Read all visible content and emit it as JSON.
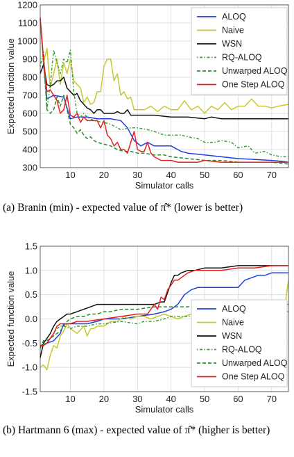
{
  "chart_data": [
    {
      "type": "line",
      "xlabel": "Simulator calls",
      "ylabel": "Expected function value",
      "xlim": [
        1,
        75
      ],
      "ylim": [
        300,
        1200
      ],
      "xticks": [
        10,
        20,
        30,
        40,
        50,
        60,
        70
      ],
      "yticks": [
        300,
        400,
        500,
        600,
        700,
        800,
        900,
        1000,
        1100,
        1200
      ],
      "grid": true,
      "legend_position": "top-right",
      "series": [
        {
          "name": "ALOQ",
          "color": "#1f3fe0",
          "style": "solid",
          "x": [
            1,
            2,
            3,
            5,
            8,
            10,
            12,
            15,
            18,
            20,
            22,
            25,
            27,
            29,
            31,
            33,
            35,
            38,
            40,
            43,
            45,
            50,
            55,
            60,
            65,
            70,
            73,
            75
          ],
          "y": [
            1120,
            870,
            680,
            700,
            690,
            570,
            580,
            580,
            570,
            570,
            570,
            560,
            520,
            450,
            420,
            440,
            420,
            420,
            420,
            390,
            380,
            370,
            360,
            350,
            345,
            340,
            335,
            330
          ]
        },
        {
          "name": "Naive",
          "color": "#c8c830",
          "style": "solid",
          "x": [
            1,
            2,
            3,
            4,
            5,
            6,
            7,
            8,
            9,
            10,
            11,
            12,
            13,
            14,
            15,
            16,
            17,
            18,
            19,
            20,
            21,
            22,
            23,
            24,
            25,
            26,
            27,
            28,
            29,
            30,
            32,
            34,
            36,
            38,
            40,
            42,
            44,
            46,
            48,
            50,
            52,
            54,
            56,
            58,
            60,
            62,
            64,
            66,
            68,
            70,
            72,
            75
          ],
          "y": [
            1120,
            880,
            960,
            740,
            820,
            900,
            760,
            880,
            820,
            900,
            780,
            760,
            740,
            660,
            690,
            650,
            660,
            720,
            720,
            860,
            900,
            900,
            780,
            820,
            700,
            720,
            680,
            690,
            620,
            620,
            620,
            640,
            610,
            640,
            620,
            620,
            670,
            620,
            640,
            600,
            640,
            620,
            660,
            620,
            640,
            640,
            680,
            640,
            640,
            630,
            640,
            650
          ]
        },
        {
          "name": "WSN",
          "color": "#111111",
          "style": "solid",
          "x": [
            1,
            2,
            3,
            4,
            5,
            6,
            7,
            8,
            9,
            10,
            11,
            12,
            13,
            14,
            15,
            16,
            17,
            18,
            19,
            20,
            21,
            22,
            23,
            24,
            25,
            26,
            27,
            28,
            30,
            35,
            40,
            45,
            50,
            52,
            55,
            60,
            65,
            70,
            75
          ],
          "y": [
            820,
            870,
            760,
            750,
            760,
            780,
            780,
            800,
            740,
            720,
            700,
            710,
            670,
            650,
            630,
            620,
            600,
            620,
            620,
            600,
            600,
            600,
            600,
            610,
            600,
            600,
            620,
            590,
            590,
            590,
            580,
            580,
            570,
            580,
            570,
            570,
            570,
            570,
            570
          ]
        },
        {
          "name": "RQ-ALOQ",
          "color": "#3a9e3a",
          "style": "dashdot",
          "x": [
            1,
            2,
            3,
            4,
            5,
            6,
            7,
            8,
            9,
            10,
            11,
            12,
            13,
            14,
            15,
            17,
            20,
            22,
            25,
            28,
            30,
            33,
            35,
            38,
            40,
            43,
            45,
            48,
            50,
            53,
            55,
            58,
            60,
            63,
            65,
            68,
            70,
            73,
            75
          ],
          "y": [
            860,
            940,
            620,
            760,
            950,
            880,
            820,
            900,
            880,
            950,
            720,
            600,
            580,
            600,
            580,
            560,
            550,
            540,
            510,
            520,
            520,
            510,
            500,
            480,
            480,
            480,
            470,
            460,
            440,
            440,
            450,
            440,
            410,
            420,
            380,
            390,
            370,
            360,
            360
          ]
        },
        {
          "name": "Unwarped ALOQ",
          "color": "#2a8a2a",
          "style": "dashed",
          "x": [
            1,
            2,
            3,
            4,
            5,
            6,
            7,
            8,
            9,
            10,
            11,
            12,
            13,
            14,
            15,
            16,
            17,
            18,
            20,
            22,
            24,
            26,
            28,
            30,
            32,
            35,
            38,
            40,
            45,
            50,
            55,
            60,
            65,
            70,
            75
          ],
          "y": [
            1120,
            900,
            620,
            600,
            620,
            690,
            640,
            700,
            620,
            540,
            520,
            490,
            510,
            480,
            460,
            470,
            450,
            440,
            430,
            420,
            400,
            390,
            390,
            380,
            380,
            370,
            370,
            360,
            350,
            340,
            340,
            330,
            330,
            330,
            320
          ]
        },
        {
          "name": "One Step ALOQ",
          "color": "#e52020",
          "style": "solid",
          "x": [
            1,
            2,
            3,
            4,
            5,
            6,
            7,
            8,
            9,
            10,
            11,
            12,
            13,
            14,
            15,
            16,
            17,
            18,
            19,
            20,
            21,
            22,
            23,
            24,
            25,
            26,
            27,
            28,
            29,
            30,
            31,
            32,
            33,
            34,
            35,
            36,
            37,
            38,
            40,
            42,
            45,
            48,
            50,
            55,
            60,
            65,
            70,
            75
          ],
          "y": [
            1130,
            900,
            720,
            730,
            700,
            670,
            600,
            620,
            700,
            590,
            580,
            600,
            550,
            580,
            560,
            560,
            560,
            560,
            520,
            560,
            480,
            460,
            420,
            440,
            400,
            400,
            380,
            440,
            500,
            400,
            390,
            390,
            440,
            380,
            360,
            350,
            340,
            340,
            340,
            330,
            330,
            330,
            340,
            330,
            330,
            330,
            330,
            330
          ]
        }
      ]
    },
    {
      "type": "line",
      "xlabel": "Simulator calls",
      "ylabel": "Expected function value",
      "xlim": [
        1,
        75
      ],
      "ylim": [
        -1.5,
        1.5
      ],
      "xticks": [
        10,
        20,
        30,
        40,
        50,
        60,
        70
      ],
      "yticks": [
        -1.5,
        -1.0,
        -0.5,
        0.0,
        0.5,
        1.0,
        1.5
      ],
      "grid": true,
      "legend_position": "bottom-right",
      "series": [
        {
          "name": "ALOQ",
          "color": "#1f3fe0",
          "style": "solid",
          "x": [
            1,
            3,
            5,
            7,
            8,
            10,
            12,
            15,
            18,
            20,
            25,
            30,
            35,
            38,
            40,
            42,
            44,
            46,
            48,
            50,
            55,
            60,
            62,
            64,
            66,
            68,
            70,
            73,
            75
          ],
          "y": [
            -0.55,
            -0.5,
            -0.45,
            -0.3,
            -0.1,
            -0.1,
            -0.1,
            -0.1,
            -0.05,
            0.0,
            0.0,
            0.05,
            0.1,
            0.15,
            0.2,
            0.3,
            0.5,
            0.6,
            0.65,
            0.65,
            0.65,
            0.65,
            0.8,
            0.85,
            0.9,
            0.9,
            0.95,
            0.95,
            0.95
          ]
        },
        {
          "name": "Naive",
          "color": "#c8c830",
          "style": "solid",
          "x": [
            1,
            2,
            3,
            4,
            5,
            6,
            7,
            8,
            9,
            10,
            12,
            14,
            15,
            16,
            17,
            18,
            20,
            22,
            24,
            26,
            28,
            30,
            32,
            34,
            36,
            38,
            40,
            42,
            44,
            46,
            48,
            50,
            52,
            54,
            56,
            58,
            60,
            62,
            64,
            66,
            68,
            70,
            72,
            74,
            75
          ],
          "y": [
            -1.0,
            -0.95,
            -1.05,
            -0.75,
            -0.55,
            -0.6,
            -0.35,
            -0.25,
            -0.1,
            -0.2,
            -0.3,
            -0.15,
            -0.35,
            -0.2,
            -0.2,
            -0.15,
            -0.15,
            -0.05,
            -0.05,
            0.05,
            0.0,
            0.05,
            0.05,
            0.0,
            0.05,
            0.1,
            0.05,
            0.0,
            0.05,
            0.1,
            0.05,
            0.15,
            0.05,
            0.1,
            0.0,
            0.1,
            0.15,
            0.2,
            0.2,
            0.15,
            0.25,
            0.2,
            0.25,
            0.3,
            0.8
          ]
        },
        {
          "name": "WSN",
          "color": "#111111",
          "style": "solid",
          "x": [
            1,
            2,
            3,
            4,
            5,
            6,
            7,
            8,
            9,
            10,
            12,
            14,
            16,
            18,
            20,
            25,
            30,
            35,
            37,
            38,
            40,
            41,
            42,
            43,
            45,
            47,
            50,
            55,
            60,
            65,
            70,
            75
          ],
          "y": [
            -0.8,
            -0.5,
            -0.4,
            -0.3,
            -0.15,
            -0.05,
            0.0,
            0.05,
            0.1,
            0.1,
            0.15,
            0.2,
            0.25,
            0.3,
            0.3,
            0.3,
            0.3,
            0.3,
            0.35,
            0.35,
            0.75,
            0.9,
            0.9,
            0.95,
            1.0,
            1.0,
            1.05,
            1.05,
            1.1,
            1.1,
            1.1,
            1.1
          ]
        },
        {
          "name": "RQ-ALOQ",
          "color": "#3a9e3a",
          "style": "dashdot",
          "x": [
            1,
            3,
            5,
            6,
            7,
            8,
            10,
            12,
            15,
            18,
            20,
            25,
            30,
            32,
            35,
            38,
            40,
            45,
            50,
            55,
            60,
            65,
            70,
            75
          ],
          "y": [
            -0.55,
            -0.5,
            -0.3,
            -0.2,
            -0.15,
            -0.15,
            -0.2,
            -0.15,
            -0.15,
            -0.1,
            -0.1,
            -0.05,
            -0.1,
            -0.05,
            -0.05,
            0.0,
            0.05,
            0.05,
            0.1,
            0.1,
            0.1,
            0.1,
            0.15,
            0.15
          ]
        },
        {
          "name": "Unwarped ALOQ",
          "color": "#2a8a2a",
          "style": "dashed",
          "x": [
            1,
            2,
            3,
            4,
            5,
            6,
            7,
            8,
            9,
            10,
            12,
            14,
            16,
            18,
            20,
            22,
            25,
            30,
            35,
            40,
            45,
            50,
            55,
            60,
            65,
            70,
            75
          ],
          "y": [
            -0.6,
            -0.45,
            -0.45,
            -0.4,
            -0.35,
            -0.3,
            -0.25,
            -0.15,
            -0.05,
            0.0,
            0.05,
            0.05,
            0.1,
            0.1,
            0.15,
            0.15,
            0.2,
            0.2,
            0.25,
            0.25,
            0.25,
            0.3,
            0.3,
            0.3,
            0.3,
            0.3,
            0.3
          ]
        },
        {
          "name": "One Step ALOQ",
          "color": "#e52020",
          "style": "solid",
          "x": [
            1,
            2,
            3,
            5,
            6,
            7,
            8,
            10,
            12,
            15,
            20,
            25,
            30,
            33,
            34,
            35,
            36,
            37,
            38,
            39,
            40,
            41,
            42,
            43,
            45,
            47,
            50,
            55,
            60,
            65,
            70,
            75
          ],
          "y": [
            -0.55,
            -0.55,
            -0.5,
            -0.3,
            -0.15,
            -0.1,
            -0.1,
            -0.1,
            -0.05,
            -0.05,
            0.0,
            0.05,
            0.1,
            0.1,
            0.2,
            0.3,
            0.2,
            0.45,
            0.4,
            0.6,
            0.7,
            0.8,
            0.8,
            0.85,
            0.95,
            1.0,
            1.0,
            1.0,
            1.05,
            1.05,
            1.1,
            1.1
          ]
        }
      ]
    }
  ],
  "captions": {
    "a": "(a) Branin (min) - expected value of π̂* (lower is better)",
    "b": "(b) Hartmann 6 (max) - expected value of π̂* (higher is better)"
  }
}
